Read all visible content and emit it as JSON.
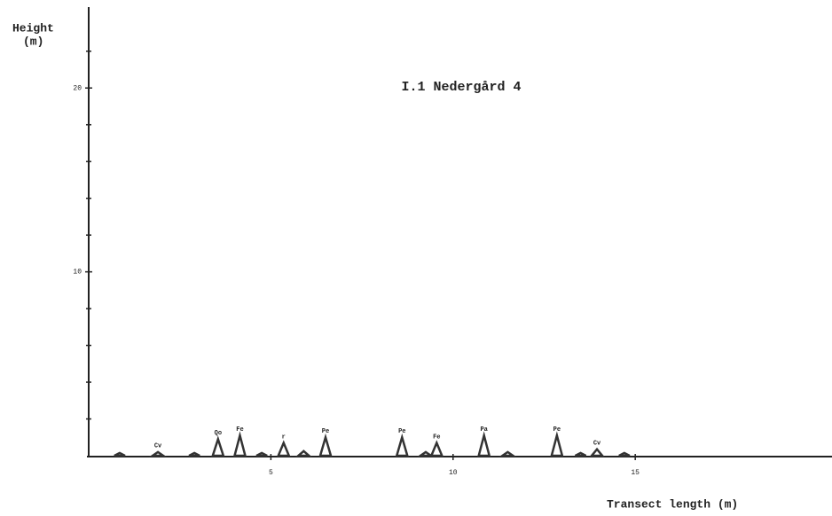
{
  "chart_data": {
    "type": "scatter",
    "title": "I.1  Nedergård 4",
    "ylabel": [
      "Height",
      "(m)"
    ],
    "xlabel": "Transect length  (m)",
    "x": [
      0.85,
      1.9,
      2.9,
      3.55,
      4.15,
      4.75,
      5.35,
      5.9,
      6.5,
      8.6,
      9.25,
      9.55,
      10.85,
      11.5,
      12.85,
      13.5,
      13.95,
      14.7
    ],
    "values": [
      0.15,
      0.2,
      0.15,
      0.9,
      1.1,
      0.15,
      0.7,
      0.25,
      1.0,
      1.0,
      0.2,
      0.7,
      1.1,
      0.2,
      1.1,
      0.15,
      0.35,
      0.15
    ],
    "point_labels": [
      null,
      "Cv",
      null,
      "Qo",
      "Fe",
      null,
      "r",
      null,
      "Pe",
      "Pe",
      null,
      "Fe",
      "Pa",
      null,
      "Pe",
      null,
      "Cv",
      null
    ],
    "color": "#333333",
    "xlim": [
      0,
      20.4
    ],
    "ylim": [
      0,
      24.4
    ],
    "xticks": [
      5,
      10,
      15
    ],
    "yticks": [
      10,
      20
    ],
    "yminorticks": [
      2,
      4,
      6,
      8,
      12,
      14,
      16,
      18,
      22
    ]
  }
}
